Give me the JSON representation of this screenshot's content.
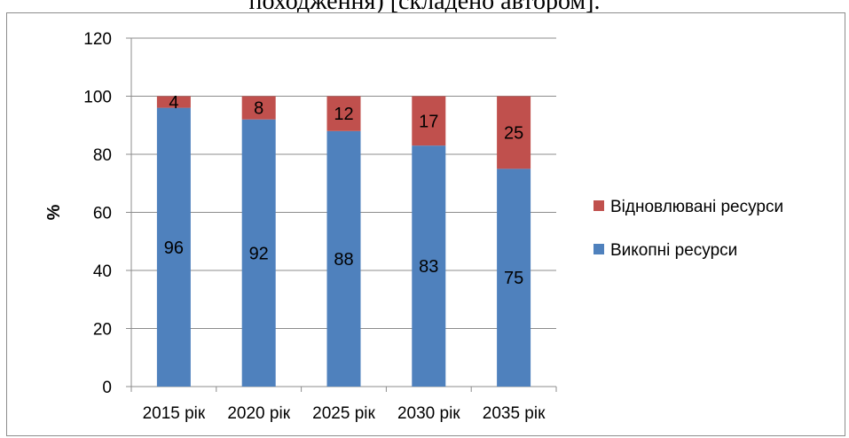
{
  "caption": "походження) [складено автором].",
  "chart_data": {
    "type": "bar",
    "stacked": true,
    "categories": [
      "2015 рік",
      "2020 рік",
      "2025 рік",
      "2030 рік",
      "2035 рік"
    ],
    "series": [
      {
        "name": "Викопні ресурси",
        "values": [
          96,
          92,
          88,
          83,
          75
        ],
        "color": "#4f81bd"
      },
      {
        "name": "Відновлювані ресурси",
        "values": [
          4,
          8,
          12,
          17,
          25
        ],
        "color": "#c0504d"
      }
    ],
    "ylabel": "%",
    "ylim": [
      0,
      120
    ],
    "yticks": [
      0,
      20,
      40,
      60,
      80,
      100,
      120
    ],
    "grid": true,
    "legend_position": "right"
  }
}
